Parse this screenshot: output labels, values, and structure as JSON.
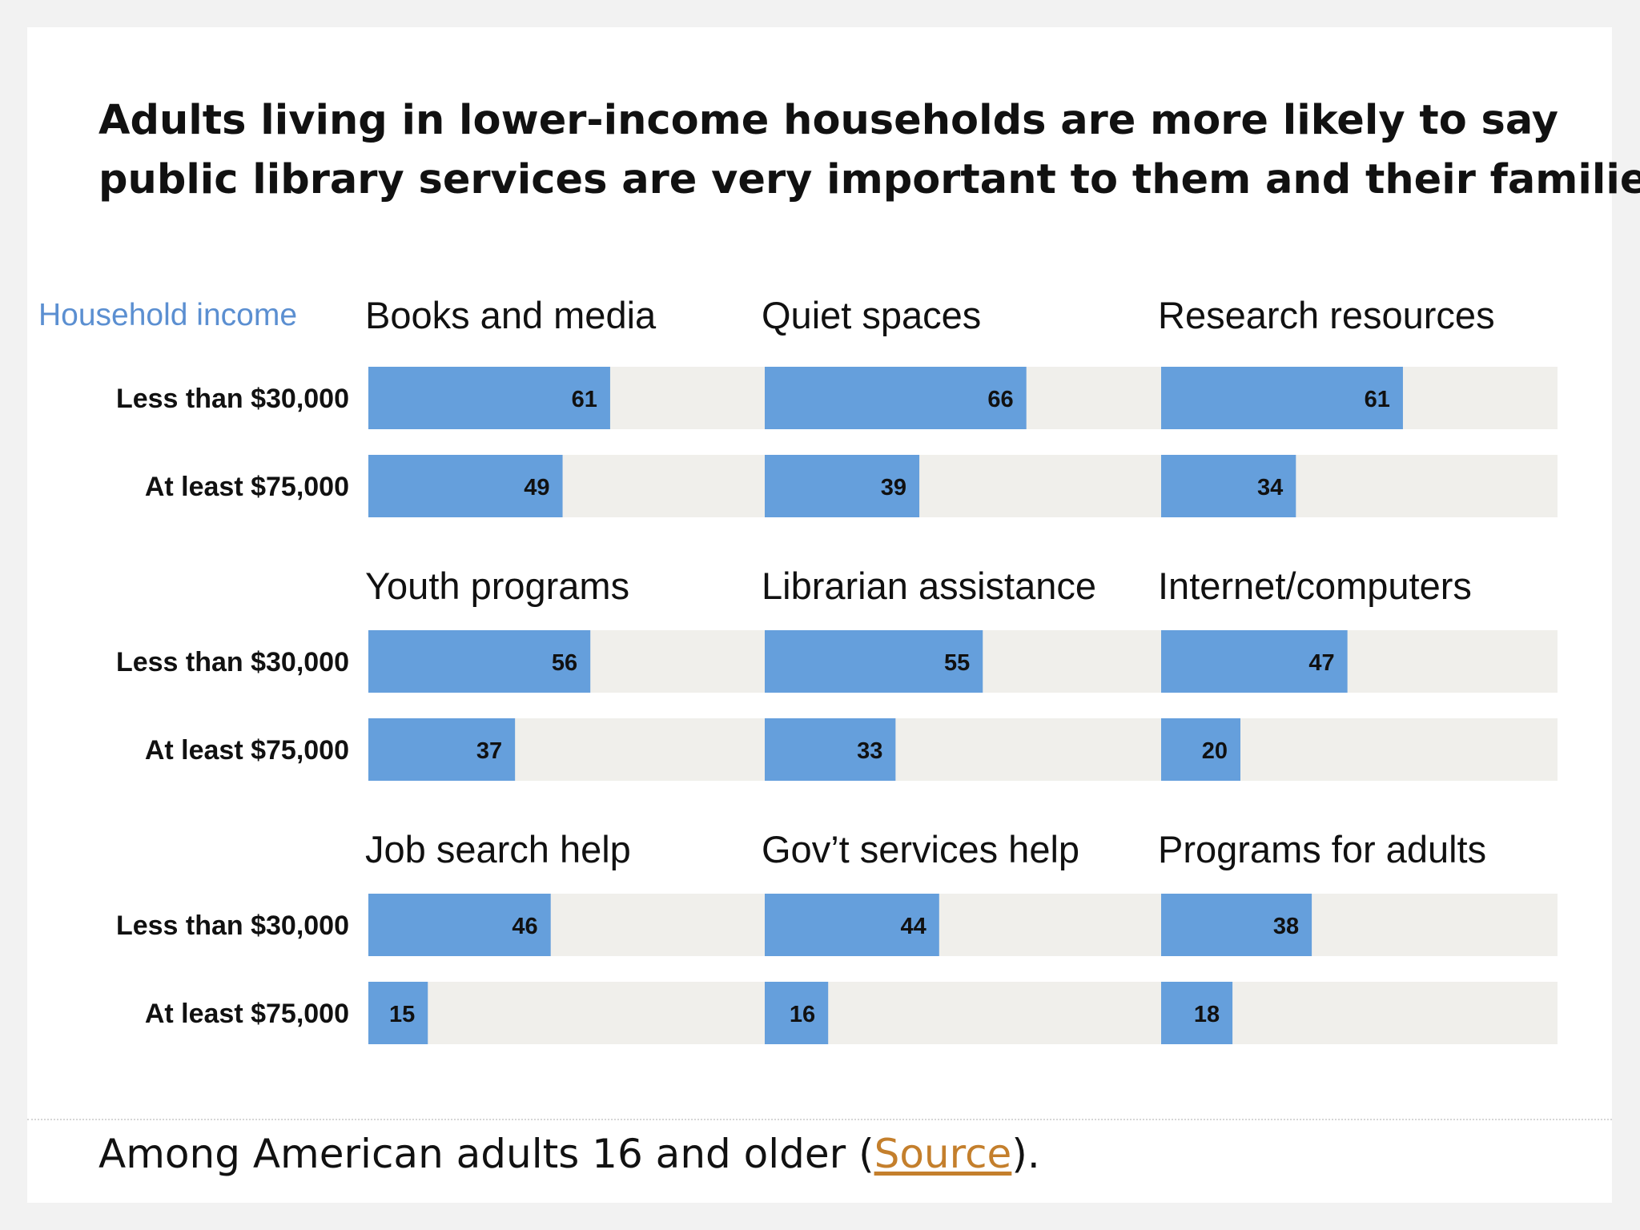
{
  "chart_data": {
    "type": "bar",
    "title_lines": [
      "Adults living in lower-income households are more likely to say",
      "public library services are very important to them and their families"
    ],
    "legend_label": "Household income",
    "groups": [
      "Less than $30,000",
      "At least $75,000"
    ],
    "xlim": [
      0,
      100
    ],
    "colors": {
      "bar": "#659fdc",
      "track": "#f0efeb",
      "text": "#111111"
    },
    "panels": [
      {
        "name": "Books and media",
        "values": [
          61,
          49
        ]
      },
      {
        "name": "Quiet spaces",
        "values": [
          66,
          39
        ]
      },
      {
        "name": "Research resources",
        "values": [
          61,
          34
        ]
      },
      {
        "name": "Youth programs",
        "values": [
          56,
          37
        ]
      },
      {
        "name": "Librarian assistance",
        "values": [
          55,
          33
        ]
      },
      {
        "name": "Internet/computers",
        "values": [
          47,
          20
        ]
      },
      {
        "name": "Job search help",
        "values": [
          46,
          15
        ]
      },
      {
        "name": "Gov’t services help",
        "values": [
          44,
          16
        ]
      },
      {
        "name": "Programs for adults",
        "values": [
          38,
          18
        ]
      }
    ]
  },
  "footer": {
    "prefix": "Among American adults 16 and older (",
    "link": "Source",
    "suffix": ")."
  }
}
